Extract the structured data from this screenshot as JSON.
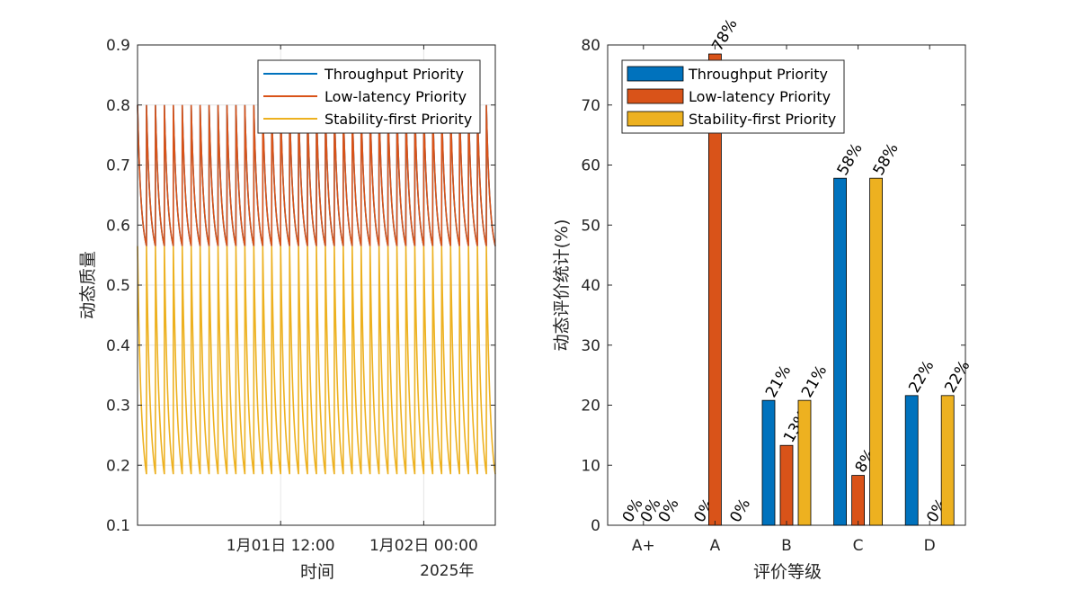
{
  "chart_data": [
    {
      "type": "line",
      "xlabel": "时间",
      "ylabel": "动态质量",
      "ylim": [
        0.1,
        0.9
      ],
      "yticks": [
        0.1,
        0.2,
        0.3,
        0.4,
        0.5,
        0.6,
        0.7,
        0.8,
        0.9
      ],
      "x_range": [
        "2025-01-01 00:00",
        "2025-01-02 06:00"
      ],
      "xtick_labels": [
        "1月01日 12:00",
        "1月02日 00:00"
      ],
      "x_secondary_label": "2025年",
      "grid": true,
      "legend_position": "top-right",
      "cycle_period_minutes": 45,
      "series": [
        {
          "name": "Throughput Priority",
          "color": "#0072BD",
          "peak": 0.8,
          "trough": 0.565,
          "note_overlaps_low_latency": true
        },
        {
          "name": "Low-latency Priority",
          "color": "#D95319",
          "peak": 0.8,
          "trough": 0.565
        },
        {
          "name": "Stability-first Priority",
          "color": "#EDB120",
          "peak": 0.565,
          "trough": 0.185
        }
      ]
    },
    {
      "type": "bar",
      "xlabel": "评价等级",
      "ylabel": "动态评价统计(%)",
      "ylim": [
        0,
        80
      ],
      "yticks": [
        0,
        10,
        20,
        30,
        40,
        50,
        60,
        70,
        80
      ],
      "categories": [
        "A+",
        "A",
        "B",
        "C",
        "D"
      ],
      "grid": false,
      "legend_position": "top-left",
      "series": [
        {
          "name": "Throughput Priority",
          "color": "#0072BD",
          "values": [
            0,
            0,
            20.8,
            57.8,
            21.6
          ],
          "labels": [
            "0%",
            "0%",
            "21%",
            "58%",
            "22%"
          ]
        },
        {
          "name": "Low-latency Priority",
          "color": "#D95319",
          "values": [
            0,
            78.5,
            13.3,
            8.3,
            0
          ],
          "labels": [
            "0%",
            "78%",
            "13%",
            "8%",
            "0%"
          ]
        },
        {
          "name": "Stability-first Priority",
          "color": "#EDB120",
          "values": [
            0,
            0,
            20.8,
            57.8,
            21.6
          ],
          "labels": [
            "0%",
            "0%",
            "21%",
            "58%",
            "22%"
          ]
        }
      ]
    }
  ]
}
